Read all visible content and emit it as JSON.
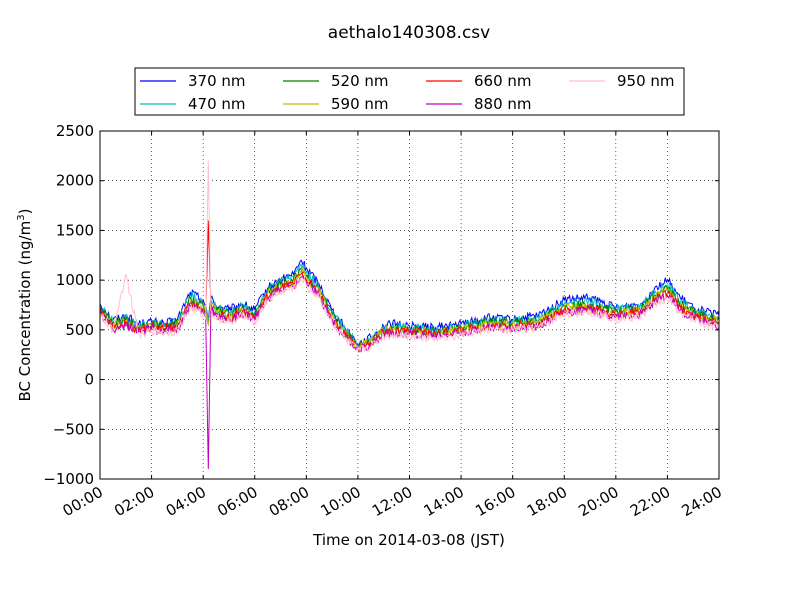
{
  "chart_data": {
    "type": "line",
    "title": "aethalo140308.csv",
    "xlabel": "Time on 2014-03-08 (JST)",
    "ylabel_main": "BC Concentration (ng/m",
    "ylabel_sup": "3",
    "ylabel_end": ")",
    "x_unit": "hour",
    "xlim": [
      0,
      24
    ],
    "ylim": [
      -1000,
      2500
    ],
    "grid": true,
    "legend": "top-center",
    "x_ticks": [
      {
        "v": 0,
        "label": "00:00"
      },
      {
        "v": 2,
        "label": "02:00"
      },
      {
        "v": 4,
        "label": "04:00"
      },
      {
        "v": 6,
        "label": "06:00"
      },
      {
        "v": 8,
        "label": "08:00"
      },
      {
        "v": 10,
        "label": "10:00"
      },
      {
        "v": 12,
        "label": "12:00"
      },
      {
        "v": 14,
        "label": "14:00"
      },
      {
        "v": 16,
        "label": "16:00"
      },
      {
        "v": 18,
        "label": "18:00"
      },
      {
        "v": 20,
        "label": "20:00"
      },
      {
        "v": 22,
        "label": "22:00"
      },
      {
        "v": 24,
        "label": "24:00"
      }
    ],
    "y_ticks": [
      {
        "v": 2500,
        "label": "2500"
      },
      {
        "v": 2000,
        "label": "2000"
      },
      {
        "v": 1500,
        "label": "1500"
      },
      {
        "v": 1000,
        "label": "1000"
      },
      {
        "v": 500,
        "label": "500"
      },
      {
        "v": 0,
        "label": "0"
      },
      {
        "v": -500,
        "label": "−500"
      },
      {
        "v": -1000,
        "label": "−1000"
      }
    ],
    "x": [
      0,
      0.5,
      1,
      1.5,
      2,
      2.5,
      3,
      3.5,
      4,
      4.1,
      4.2,
      4.3,
      4.5,
      5,
      5.5,
      6,
      6.5,
      7,
      7.5,
      7.8,
      8,
      8.5,
      9,
      9.5,
      10,
      10.5,
      11,
      11.5,
      12,
      13,
      14,
      15,
      16,
      17,
      18,
      19,
      20,
      21,
      21.5,
      22,
      22.5,
      23,
      23.5,
      24
    ],
    "series": [
      {
        "name": "370 nm",
        "color": "#0000ff",
        "values": [
          760,
          600,
          640,
          560,
          580,
          560,
          600,
          880,
          800,
          750,
          600,
          820,
          740,
          700,
          760,
          700,
          920,
          1000,
          1060,
          1200,
          1120,
          960,
          700,
          520,
          360,
          420,
          540,
          560,
          540,
          520,
          560,
          620,
          600,
          640,
          800,
          820,
          720,
          760,
          920,
          1000,
          820,
          720,
          680,
          640
        ]
      },
      {
        "name": "470 nm",
        "color": "#00bfbf",
        "values": [
          740,
          580,
          620,
          540,
          570,
          550,
          580,
          850,
          770,
          730,
          580,
          800,
          720,
          680,
          740,
          680,
          900,
          980,
          1040,
          1160,
          1080,
          930,
          670,
          500,
          350,
          400,
          520,
          540,
          520,
          500,
          540,
          600,
          590,
          620,
          770,
          790,
          710,
          740,
          880,
          950,
          790,
          700,
          660,
          620
        ]
      },
      {
        "name": "520 nm",
        "color": "#008000",
        "values": [
          720,
          560,
          600,
          520,
          560,
          540,
          560,
          820,
          740,
          700,
          560,
          780,
          700,
          660,
          720,
          660,
          880,
          960,
          1010,
          1120,
          1050,
          900,
          650,
          480,
          340,
          390,
          500,
          520,
          500,
          480,
          520,
          580,
          570,
          600,
          740,
          760,
          690,
          720,
          850,
          920,
          760,
          680,
          640,
          600
        ]
      },
      {
        "name": "590 nm",
        "color": "#bfbf00",
        "values": [
          700,
          540,
          580,
          510,
          540,
          520,
          540,
          790,
          720,
          680,
          540,
          760,
          680,
          640,
          700,
          640,
          860,
          940,
          980,
          1090,
          1020,
          880,
          630,
          460,
          330,
          380,
          490,
          500,
          490,
          470,
          500,
          560,
          550,
          580,
          720,
          740,
          670,
          700,
          820,
          890,
          740,
          660,
          620,
          580
        ]
      },
      {
        "name": "660 nm",
        "color": "#ff0000",
        "values": [
          690,
          530,
          560,
          500,
          530,
          510,
          530,
          770,
          700,
          660,
          1600,
          740,
          660,
          620,
          680,
          620,
          840,
          920,
          960,
          1060,
          1000,
          860,
          610,
          450,
          320,
          370,
          480,
          490,
          480,
          460,
          490,
          540,
          540,
          560,
          700,
          720,
          650,
          680,
          800,
          870,
          720,
          640,
          600,
          560
        ]
      },
      {
        "name": "880 nm",
        "color": "#bf00bf",
        "values": [
          670,
          510,
          540,
          480,
          510,
          490,
          510,
          740,
          670,
          630,
          -900,
          720,
          640,
          600,
          660,
          600,
          820,
          900,
          940,
          1030,
          980,
          840,
          590,
          430,
          300,
          350,
          460,
          470,
          460,
          440,
          470,
          520,
          520,
          540,
          680,
          700,
          630,
          660,
          780,
          840,
          700,
          620,
          580,
          540
        ]
      },
      {
        "name": "950 nm",
        "color": "#ffc0cb",
        "values": [
          650,
          500,
          1060,
          460,
          490,
          470,
          490,
          720,
          650,
          610,
          2200,
          700,
          620,
          580,
          640,
          580,
          800,
          880,
          920,
          1000,
          950,
          820,
          570,
          410,
          290,
          330,
          440,
          450,
          440,
          420,
          450,
          500,
          500,
          520,
          660,
          680,
          610,
          640,
          760,
          810,
          680,
          600,
          560,
          520
        ]
      }
    ]
  }
}
